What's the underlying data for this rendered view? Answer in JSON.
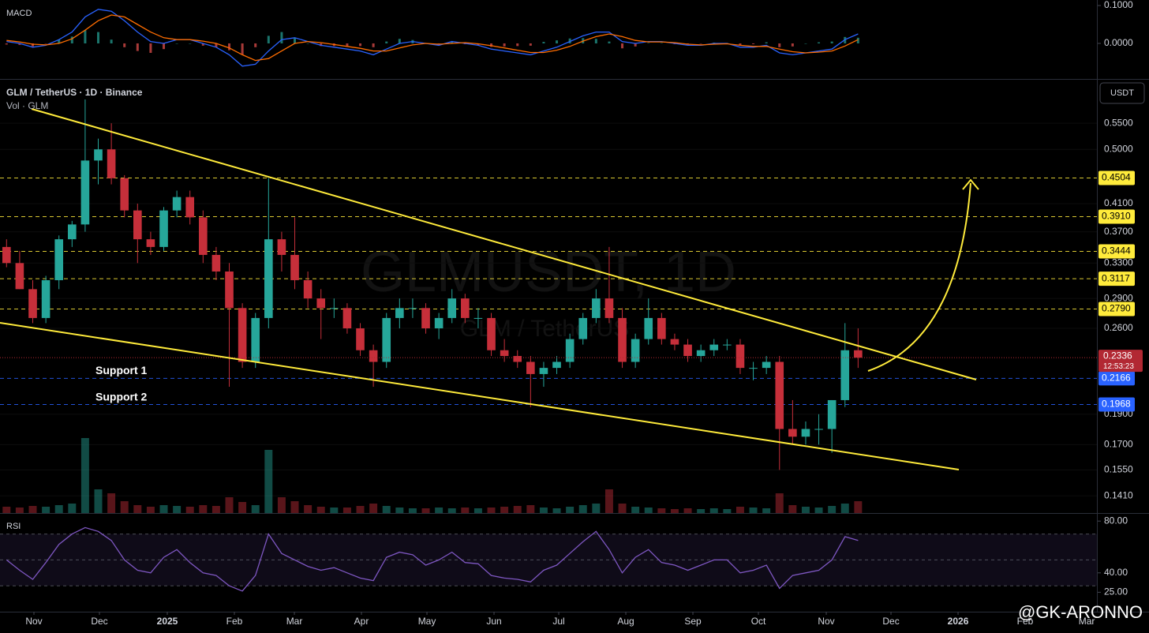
{
  "chart_data": {
    "type": "candlestick",
    "title": "GLM / TetherUS · 1D · Binance",
    "volume_label": "Vol · GLM",
    "currency": "USDT",
    "watermark": "GLMUSDT, 1D",
    "watermark_name": "GLM / TetherUS",
    "author": "@GK-ARONNO",
    "log_scale": true,
    "up_color": "#26a69a",
    "down_color": "#c62f3a",
    "xlim": [
      0,
      83.73
    ],
    "xticks": [
      {
        "value": 2.59,
        "label": "Nov"
      },
      {
        "value": 7.59,
        "label": "Dec"
      },
      {
        "value": 12.77,
        "label": "2025"
      },
      {
        "value": 17.89,
        "label": "Feb"
      },
      {
        "value": 22.47,
        "label": "Mar"
      },
      {
        "value": 27.59,
        "label": "Apr"
      },
      {
        "value": 32.59,
        "label": "May"
      },
      {
        "value": 37.71,
        "label": "Jun"
      },
      {
        "value": 42.65,
        "label": "Jul"
      },
      {
        "value": 47.77,
        "label": "Aug"
      },
      {
        "value": 52.89,
        "label": "Sep"
      },
      {
        "value": 57.89,
        "label": "Oct"
      },
      {
        "value": 63.07,
        "label": "Nov"
      },
      {
        "value": 68.01,
        "label": "Dec"
      },
      {
        "value": 73.13,
        "label": "2026"
      },
      {
        "value": 78.25,
        "label": "Feb"
      },
      {
        "value": 82.95,
        "label": "Mar"
      }
    ],
    "ylim": [
      0.1324,
      0.643
    ],
    "yticks": [
      {
        "value": 0.55,
        "label": "0.5500"
      },
      {
        "value": 0.5,
        "label": "0.5000"
      },
      {
        "value": 0.41,
        "label": "0.4100"
      },
      {
        "value": 0.37,
        "label": "0.3700"
      },
      {
        "value": 0.33,
        "label": "0.3300"
      },
      {
        "value": 0.29,
        "label": "0.2900"
      },
      {
        "value": 0.26,
        "label": "0.2600"
      },
      {
        "value": 0.19,
        "label": "0.1900"
      },
      {
        "value": 0.17,
        "label": "0.1700"
      },
      {
        "value": 0.155,
        "label": "0.1550"
      },
      {
        "value": 0.141,
        "label": "0.1410"
      }
    ],
    "levels": [
      {
        "price": 0.4504,
        "color": "#ffeb3b"
      },
      {
        "price": {
          "value": 0.391,
          "label": "0.3910"
        },
        "color": "#ffeb3b"
      },
      {
        "price": 0.3444,
        "color": "#ffeb3b"
      },
      {
        "price": 0.3117,
        "color": "#ffeb3b"
      },
      {
        "price": {
          "value": 0.279,
          "label": "0.2790"
        },
        "color": "#ffeb3b"
      },
      {
        "price": 0.2166,
        "color": "#2962ff",
        "name": "Support 1"
      },
      {
        "price": 0.1968,
        "color": "#2962ff",
        "name": "Support 2"
      }
    ],
    "last": {
      "price": 0.2336,
      "countdown": "12:53:23",
      "color": "#b22833"
    },
    "open": [
      0.35,
      0.33,
      0.3,
      0.27,
      0.31,
      0.36,
      0.38,
      0.48,
      0.5,
      0.45,
      0.4,
      0.36,
      0.35,
      0.4,
      0.42,
      0.39,
      0.34,
      0.32,
      0.28,
      0.23,
      0.27,
      0.36,
      0.34,
      0.31,
      0.29,
      0.28,
      0.28,
      0.26,
      0.24,
      0.23,
      0.27,
      0.28,
      0.28,
      0.26,
      0.27,
      0.29,
      0.27,
      0.27,
      0.24,
      0.235,
      0.23,
      0.22,
      0.225,
      0.23,
      0.25,
      0.27,
      0.29,
      0.27,
      0.23,
      0.25,
      0.27,
      0.25,
      0.245,
      0.235,
      0.24,
      0.245,
      0.245,
      0.225,
      0.225,
      0.23,
      0.18,
      0.175,
      0.18,
      0.18,
      0.2,
      0.24
    ],
    "high": [
      0.36,
      0.345,
      0.31,
      0.315,
      0.365,
      0.385,
      0.6,
      0.52,
      0.55,
      0.455,
      0.41,
      0.37,
      0.405,
      0.43,
      0.43,
      0.4,
      0.35,
      0.33,
      0.285,
      0.275,
      0.45,
      0.37,
      0.39,
      0.32,
      0.3,
      0.29,
      0.285,
      0.265,
      0.245,
      0.275,
      0.29,
      0.29,
      0.285,
      0.275,
      0.3,
      0.295,
      0.28,
      0.275,
      0.25,
      0.24,
      0.235,
      0.23,
      0.235,
      0.255,
      0.275,
      0.3,
      0.35,
      0.28,
      0.255,
      0.29,
      0.275,
      0.255,
      0.25,
      0.245,
      0.25,
      0.25,
      0.25,
      0.23,
      0.235,
      0.235,
      0.2,
      0.185,
      0.19,
      0.2,
      0.265,
      0.26
    ],
    "low": [
      0.325,
      0.3,
      0.265,
      0.265,
      0.3,
      0.35,
      0.37,
      0.44,
      0.44,
      0.39,
      0.33,
      0.34,
      0.345,
      0.39,
      0.38,
      0.33,
      0.31,
      0.21,
      0.225,
      0.225,
      0.26,
      0.32,
      0.3,
      0.28,
      0.25,
      0.27,
      0.255,
      0.235,
      0.21,
      0.225,
      0.26,
      0.27,
      0.255,
      0.25,
      0.265,
      0.265,
      0.26,
      0.235,
      0.23,
      0.225,
      0.195,
      0.21,
      0.22,
      0.225,
      0.245,
      0.265,
      0.265,
      0.225,
      0.225,
      0.245,
      0.245,
      0.24,
      0.23,
      0.23,
      0.235,
      0.24,
      0.22,
      0.215,
      0.22,
      0.155,
      0.17,
      0.17,
      0.17,
      0.165,
      0.195,
      0.225
    ],
    "close": [
      0.33,
      0.3,
      0.27,
      0.31,
      0.36,
      0.38,
      0.48,
      0.5,
      0.45,
      0.4,
      0.36,
      0.35,
      0.4,
      0.42,
      0.39,
      0.34,
      0.32,
      0.28,
      0.23,
      0.27,
      0.36,
      0.34,
      0.31,
      0.29,
      0.28,
      0.28,
      0.26,
      0.24,
      0.23,
      0.27,
      0.28,
      0.28,
      0.26,
      0.27,
      0.29,
      0.27,
      0.27,
      0.24,
      0.235,
      0.23,
      0.22,
      0.225,
      0.23,
      0.25,
      0.27,
      0.29,
      0.27,
      0.23,
      0.25,
      0.27,
      0.25,
      0.245,
      0.235,
      0.24,
      0.245,
      0.245,
      0.225,
      0.225,
      0.23,
      0.18,
      0.175,
      0.18,
      0.18,
      0.2,
      0.24,
      0.2336
    ],
    "vlim": [
      0,
      100
    ],
    "volume": [
      8,
      7,
      9,
      8,
      10,
      12,
      95,
      30,
      25,
      15,
      10,
      8,
      10,
      9,
      8,
      10,
      9,
      20,
      14,
      10,
      80,
      20,
      15,
      10,
      8,
      7,
      7,
      9,
      12,
      9,
      7,
      6,
      6,
      7,
      6,
      7,
      6,
      7,
      8,
      9,
      10,
      7,
      6,
      8,
      10,
      12,
      30,
      12,
      8,
      7,
      6,
      5,
      6,
      5,
      6,
      5,
      8,
      7,
      6,
      25,
      10,
      8,
      7,
      9,
      12,
      15
    ],
    "macd": {
      "title": "MACD",
      "ylim": [
        -0.0938,
        0.1146
      ],
      "yticks": [
        {
          "value": 0.1,
          "label": "0.1000"
        },
        {
          "value": 0,
          "label": "0.0000"
        }
      ],
      "series": [
        {
          "color": "#2962ff",
          "values": [
            0.005,
            0,
            -0.01,
            -0.005,
            0.01,
            0.03,
            0.07,
            0.09,
            0.085,
            0.06,
            0.03,
            0.005,
            0.0,
            0.01,
            0.01,
            0.0,
            -0.01,
            -0.03,
            -0.06,
            -0.055,
            -0.02,
            0.01,
            0.015,
            0.005,
            -0.005,
            -0.01,
            -0.015,
            -0.02,
            -0.03,
            -0.015,
            0.0,
            0.005,
            0.0,
            -0.005,
            0.005,
            0.0,
            -0.005,
            -0.015,
            -0.02,
            -0.025,
            -0.03,
            -0.02,
            -0.01,
            0.005,
            0.02,
            0.03,
            0.03,
            0.005,
            0.0,
            0.005,
            0.005,
            0.0,
            -0.005,
            -0.005,
            0.0,
            0.0,
            -0.01,
            -0.01,
            -0.005,
            -0.025,
            -0.03,
            -0.025,
            -0.02,
            -0.015,
            0.01,
            0.025
          ]
        },
        {
          "color": "#ff6d00",
          "values": [
            0.008,
            0.004,
            -0.002,
            -0.004,
            0.0,
            0.012,
            0.035,
            0.06,
            0.075,
            0.07,
            0.05,
            0.03,
            0.015,
            0.01,
            0.01,
            0.006,
            0.0,
            -0.012,
            -0.03,
            -0.045,
            -0.04,
            -0.02,
            0.0,
            0.005,
            0.002,
            -0.003,
            -0.008,
            -0.013,
            -0.02,
            -0.02,
            -0.012,
            -0.004,
            0.0,
            -0.002,
            0.0,
            0.002,
            -0.001,
            -0.006,
            -0.012,
            -0.018,
            -0.024,
            -0.024,
            -0.018,
            -0.008,
            0.006,
            0.018,
            0.025,
            0.018,
            0.008,
            0.004,
            0.004,
            0.002,
            -0.002,
            -0.004,
            -0.002,
            -0.001,
            -0.005,
            -0.008,
            -0.008,
            -0.015,
            -0.022,
            -0.025,
            -0.023,
            -0.02,
            -0.007,
            0.01
          ]
        }
      ]
    },
    "rsi": {
      "title": "RSI",
      "color": "#7e57c2",
      "ylim": [
        10,
        85
      ],
      "yticks": [
        {
          "value": 80,
          "label": "80.00"
        },
        {
          "value": 40,
          "label": "40.00"
        },
        {
          "value": 25,
          "label": "25.00"
        }
      ],
      "levels": [
        70,
        50,
        30
      ],
      "values": [
        50,
        42,
        35,
        48,
        62,
        70,
        75,
        72,
        65,
        50,
        42,
        40,
        52,
        58,
        48,
        40,
        38,
        30,
        26,
        38,
        70,
        55,
        50,
        45,
        42,
        44,
        40,
        36,
        34,
        52,
        56,
        54,
        46,
        50,
        56,
        48,
        47,
        38,
        36,
        35,
        33,
        42,
        46,
        55,
        64,
        72,
        58,
        40,
        52,
        58,
        48,
        46,
        42,
        46,
        50,
        50,
        40,
        42,
        46,
        28,
        38,
        40,
        42,
        50,
        68,
        65
      ]
    }
  }
}
